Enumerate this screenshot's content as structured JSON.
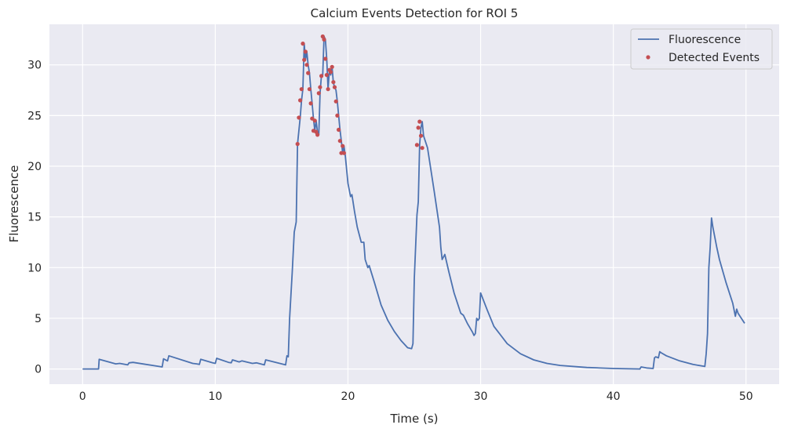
{
  "chart_data": {
    "type": "line",
    "title": "Calcium Events Detection for ROI 5",
    "xlabel": "Time (s)",
    "ylabel": "Fluorescence",
    "xlim": [
      -2.5,
      52.5
    ],
    "ylim": [
      -1.5,
      34.0
    ],
    "xticks": [
      0,
      10,
      20,
      30,
      40,
      50
    ],
    "xtick_labels": [
      "0",
      "10",
      "20",
      "30",
      "40",
      "50"
    ],
    "yticks": [
      0,
      5,
      10,
      15,
      20,
      25,
      30
    ],
    "ytick_labels": [
      "0",
      "5",
      "10",
      "15",
      "20",
      "25",
      "30"
    ],
    "grid": true,
    "legend": {
      "position": "top-right",
      "entries": [
        "Fluorescence",
        "Detected Events"
      ]
    },
    "colors": {
      "line": "#4c72b0",
      "events": "#c44e52",
      "plot_bg": "#eaeaf2",
      "grid": "#ffffff"
    },
    "series": [
      {
        "name": "Fluorescence",
        "kind": "line",
        "x": [
          0,
          1.2,
          1.25,
          2.5,
          2.8,
          3.4,
          3.5,
          3.8,
          6.0,
          6.1,
          6.4,
          6.5,
          8.3,
          8.6,
          8.8,
          8.9,
          9.8,
          10.0,
          10.1,
          11.0,
          11.2,
          11.3,
          11.8,
          12.0,
          12.8,
          13.1,
          13.7,
          13.8,
          15.3,
          15.4,
          15.5,
          15.6,
          15.8,
          15.95,
          16.1,
          16.2,
          16.4,
          16.5,
          16.6,
          16.7,
          16.8,
          16.9,
          17.0,
          17.1,
          17.2,
          17.3,
          17.4,
          17.5,
          17.6,
          17.7,
          17.8,
          17.9,
          18.0,
          18.1,
          18.2,
          18.3,
          18.4,
          18.5,
          18.6,
          18.7,
          18.8,
          18.9,
          19.0,
          19.1,
          19.2,
          19.3,
          19.4,
          19.5,
          19.6,
          19.7,
          19.8,
          20.0,
          20.2,
          20.3,
          20.5,
          20.7,
          21.0,
          21.2,
          21.3,
          21.5,
          21.6,
          22.0,
          22.5,
          23.0,
          23.5,
          24.0,
          24.5,
          24.8,
          24.9,
          25.0,
          25.2,
          25.3,
          25.4,
          25.5,
          25.6,
          25.7,
          26.0,
          26.5,
          26.9,
          27.0,
          27.1,
          27.3,
          27.6,
          28.0,
          28.5,
          28.7,
          29.0,
          29.4,
          29.5,
          29.6,
          29.7,
          29.8,
          29.9,
          30.0,
          30.5,
          31.0,
          32.0,
          33.0,
          34.0,
          35.0,
          36.0,
          38.0,
          40.0,
          42.0,
          42.1,
          42.5,
          43.0,
          43.1,
          43.2,
          43.4,
          43.5,
          43.6,
          44.0,
          45.0,
          46.0,
          46.9,
          47.0,
          47.1,
          47.2,
          47.3,
          47.4,
          47.5,
          47.8,
          48.0,
          48.5,
          49.0,
          49.2,
          49.3,
          49.4,
          49.6,
          49.9
        ],
        "y": [
          0,
          0,
          0.95,
          0.5,
          0.55,
          0.4,
          0.6,
          0.65,
          0.2,
          1.0,
          0.8,
          1.3,
          0.55,
          0.5,
          0.45,
          0.95,
          0.6,
          0.55,
          1.05,
          0.65,
          0.6,
          0.9,
          0.7,
          0.8,
          0.55,
          0.6,
          0.4,
          0.9,
          0.4,
          1.3,
          1.2,
          5.0,
          9.5,
          13.5,
          14.5,
          22.2,
          24.8,
          26.5,
          27.6,
          32.1,
          30.5,
          31.3,
          30.0,
          29.2,
          27.6,
          26.2,
          24.7,
          23.5,
          24.5,
          23.4,
          23.1,
          27.2,
          28.9,
          29.0,
          32.8,
          32.5,
          30.6,
          27.6,
          29.5,
          29.0,
          29.8,
          28.2,
          27.8,
          27.5,
          26.4,
          25.0,
          23.6,
          22.5,
          21.3,
          22.0,
          21.0,
          18.3,
          17.0,
          17.2,
          15.5,
          14.0,
          12.5,
          12.5,
          10.8,
          10.0,
          10.2,
          8.5,
          6.3,
          4.8,
          3.7,
          2.8,
          2.1,
          2.0,
          2.5,
          8.9,
          15.2,
          16.5,
          22.1,
          23.8,
          24.4,
          23.0,
          21.8,
          17.5,
          14.0,
          12.0,
          10.8,
          11.3,
          9.6,
          7.5,
          5.5,
          5.3,
          4.5,
          3.6,
          3.3,
          3.5,
          5.0,
          4.8,
          5.0,
          7.5,
          5.8,
          4.2,
          2.5,
          1.5,
          0.9,
          0.55,
          0.35,
          0.15,
          0.05,
          0.0,
          0.2,
          0.1,
          0.05,
          1.1,
          1.2,
          1.1,
          1.7,
          1.6,
          1.3,
          0.8,
          0.45,
          0.25,
          1.5,
          3.5,
          10.0,
          12.0,
          14.9,
          14.0,
          12.0,
          10.8,
          8.5,
          6.5,
          5.2,
          5.9,
          5.5,
          5.1,
          4.5
        ]
      },
      {
        "name": "Detected Events",
        "kind": "scatter",
        "x": [
          16.2,
          16.3,
          16.4,
          16.5,
          16.6,
          16.7,
          16.8,
          16.9,
          17.0,
          17.1,
          17.2,
          17.3,
          17.4,
          17.5,
          17.6,
          17.7,
          17.8,
          17.9,
          18.0,
          18.1,
          18.2,
          18.3,
          18.4,
          18.5,
          18.6,
          18.7,
          18.8,
          18.9,
          19.0,
          19.1,
          19.2,
          19.3,
          19.4,
          19.5,
          19.6,
          19.7,
          25.2,
          25.3,
          25.4,
          25.5,
          25.6
        ],
        "y": [
          22.2,
          24.8,
          26.5,
          27.6,
          32.1,
          30.5,
          31.3,
          30.0,
          29.2,
          27.6,
          26.2,
          24.7,
          23.5,
          24.5,
          23.4,
          23.1,
          27.2,
          27.8,
          28.9,
          32.8,
          32.5,
          30.6,
          29.0,
          27.6,
          29.5,
          29.3,
          29.8,
          28.3,
          27.8,
          26.4,
          25.0,
          23.6,
          22.5,
          21.3,
          22.0,
          21.3,
          22.1,
          23.8,
          24.4,
          23.0,
          21.8
        ]
      }
    ]
  }
}
